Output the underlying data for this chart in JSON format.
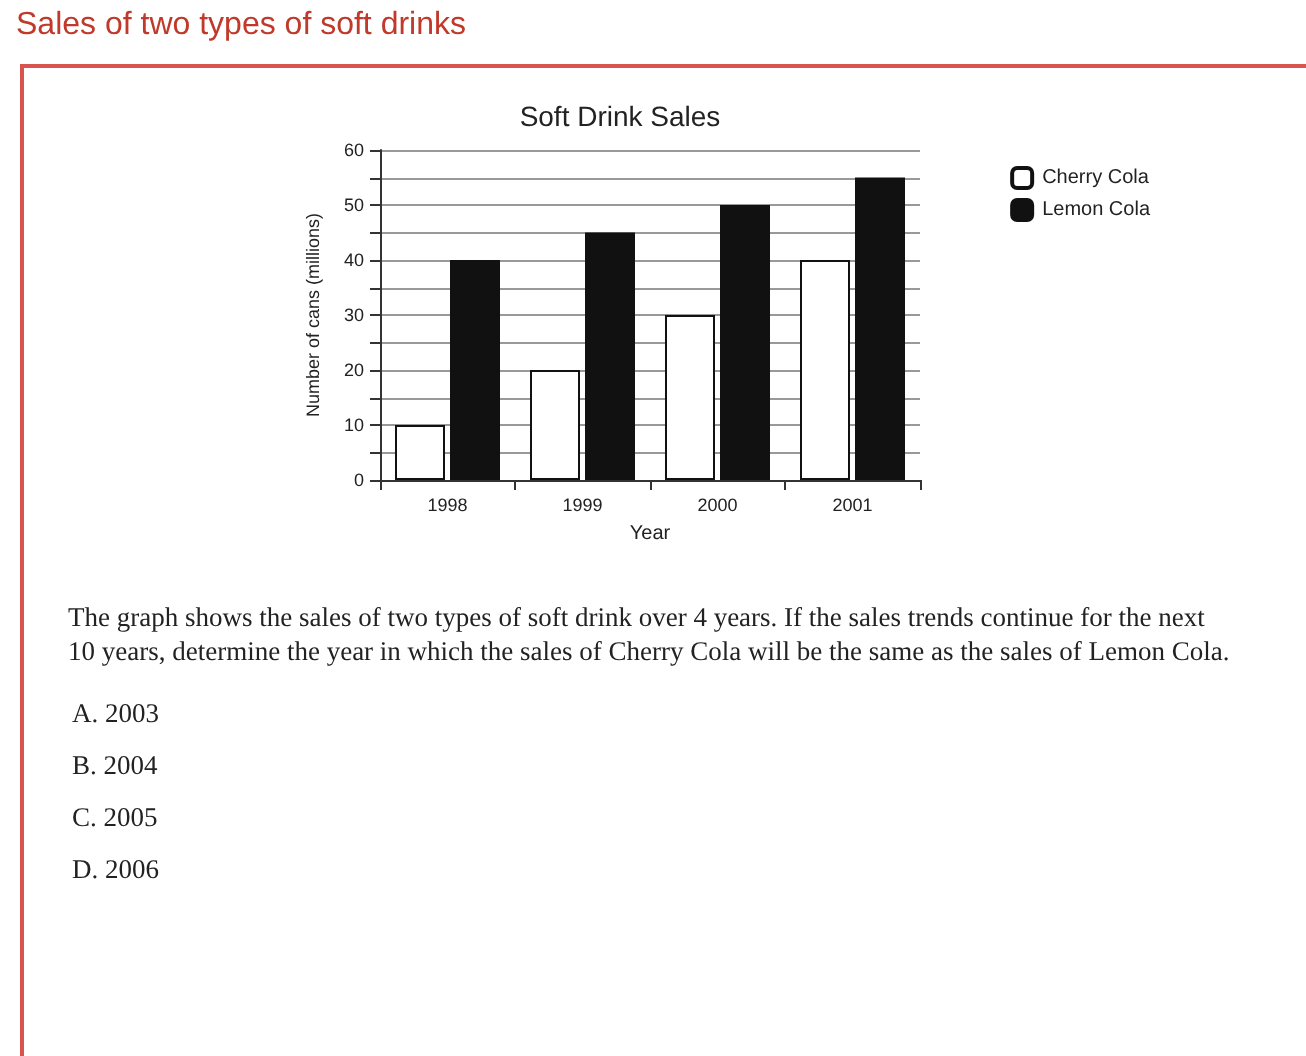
{
  "chart_data": {
    "type": "bar",
    "title": "Sales of two types of soft drinks",
    "subtitle": "Soft Drink Sales",
    "xlabel": "Year",
    "ylabel": "Number of cans (millions)",
    "categories": [
      "1998",
      "1999",
      "2000",
      "2001"
    ],
    "series": [
      {
        "name": "Cherry Cola",
        "color": "#ffffff",
        "values": [
          10,
          20,
          30,
          40
        ]
      },
      {
        "name": "Lemon Cola",
        "color": "#111111",
        "values": [
          40,
          45,
          50,
          55
        ]
      }
    ],
    "ylim": [
      0,
      60
    ],
    "yticks": [
      0,
      {
        "value": 5,
        "label": null
      },
      10,
      {
        "value": 15,
        "label": null
      },
      20,
      {
        "value": 25,
        "label": null
      },
      30,
      {
        "value": 35,
        "label": null
      },
      40,
      {
        "value": 45,
        "label": null
      },
      50,
      {
        "value": 55,
        "label": null
      },
      60
    ],
    "grid": "y",
    "legend": "top right",
    "annotations": [
      "The graph shows the sales of two types of soft drink over 4 years. If the sales trends continue for the next 10 years, determine the year in which the sales of Cherry Cola will be the same as the sales of Lemon Cola.",
      "A.   2003",
      "B.   2004",
      "C.   2005",
      "D.   2006"
    ]
  }
}
